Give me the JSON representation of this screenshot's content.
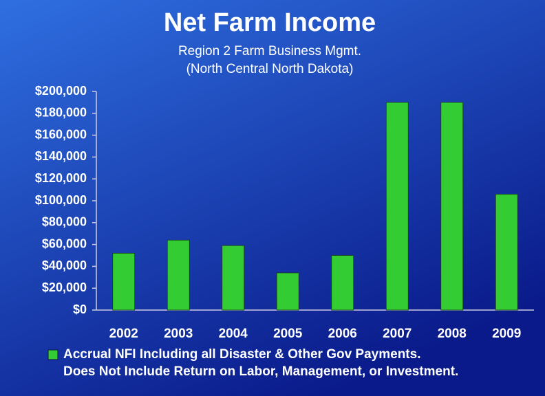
{
  "chart_data": {
    "type": "bar",
    "title": "Net Farm Income",
    "subtitle": [
      "Region 2 Farm Business Mgmt.",
      "(North Central North Dakota)"
    ],
    "categories": [
      "2002",
      "2003",
      "2004",
      "2005",
      "2006",
      "2007",
      "2008",
      "2009"
    ],
    "series": [
      {
        "name": "Accrual NFI Including all Disaster & Other Gov Payments.",
        "color": "#33cc33",
        "values": [
          52000,
          64000,
          59000,
          34000,
          50000,
          190000,
          190000,
          106000
        ]
      }
    ],
    "note": "Does Not Include Return on Labor, Management, or Investment.",
    "ylim": [
      0,
      200000
    ],
    "yticks": [
      {
        "value": 0,
        "label": "$0"
      },
      {
        "value": 20000,
        "label": "$20,000"
      },
      {
        "value": 40000,
        "label": "$40,000"
      },
      {
        "value": 60000,
        "label": "$60,000"
      },
      {
        "value": 80000,
        "label": "$80,000"
      },
      {
        "value": 100000,
        "label": "$100,000"
      },
      {
        "value": 120000,
        "label": "$120,000"
      },
      {
        "value": 140000,
        "label": "$140,000"
      },
      {
        "value": 160000,
        "label": "$160,000"
      },
      {
        "value": 180000,
        "label": "$180,000"
      },
      {
        "value": 200000,
        "label": "$200,000"
      }
    ]
  }
}
